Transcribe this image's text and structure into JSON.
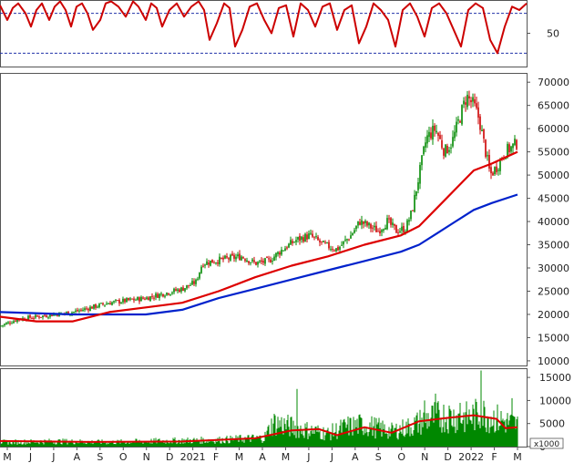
{
  "chart_data": [
    {
      "type": "line",
      "panel": "oscillator",
      "y_tick_labels": [
        "50"
      ],
      "ylim": [
        0,
        100
      ],
      "reference_levels": [
        80,
        20
      ],
      "series": [
        {
          "color": "#cc0000",
          "x_index": [
            0,
            8,
            14,
            20,
            28,
            34,
            40,
            46,
            54,
            60,
            66,
            72,
            78,
            84,
            90,
            96,
            102,
            110,
            116,
            122,
            130,
            138,
            146,
            152,
            160,
            166,
            172,
            178,
            186,
            194,
            202,
            210,
            218,
            224,
            230,
            238,
            246,
            252,
            258,
            266,
            274,
            282,
            290,
            298,
            306,
            314,
            322,
            330,
            338,
            346,
            354,
            362,
            370,
            378,
            386,
            394,
            402,
            410,
            418,
            426,
            434,
            442,
            450,
            458,
            466,
            474,
            482,
            490,
            498,
            506,
            514,
            522,
            530,
            538,
            546,
            554,
            562,
            570,
            578
          ],
          "values": [
            92,
            70,
            88,
            95,
            80,
            60,
            85,
            95,
            70,
            90,
            98,
            85,
            60,
            90,
            95,
            80,
            55,
            70,
            95,
            98,
            90,
            75,
            98,
            90,
            70,
            95,
            88,
            60,
            85,
            95,
            75,
            90,
            98,
            85,
            40,
            65,
            95,
            88,
            30,
            55,
            90,
            95,
            70,
            50,
            88,
            92,
            45,
            95,
            85,
            60,
            90,
            95,
            55,
            85,
            92,
            35,
            60,
            95,
            85,
            70,
            30,
            85,
            95,
            75,
            45,
            88,
            95,
            80,
            55,
            30,
            85,
            95,
            88,
            40,
            20,
            60,
            90,
            85,
            95
          ]
        }
      ]
    },
    {
      "type": "candlestick",
      "panel": "price",
      "x_tick_labels": [
        "M",
        "J",
        "J",
        "A",
        "S",
        "O",
        "N",
        "D",
        "2021",
        "F",
        "M",
        "A",
        "M",
        "J",
        "J",
        "A",
        "S",
        "O",
        "N",
        "D",
        "2022",
        "F",
        "M"
      ],
      "y_tick_labels": [
        "10000",
        "15000",
        "20000",
        "25000",
        "30000",
        "35000",
        "40000",
        "45000",
        "50000",
        "55000",
        "60000",
        "65000",
        "70000"
      ],
      "ylim": [
        9000,
        72000
      ],
      "colors": {
        "up": "#008800",
        "down": "#cc0000",
        "ma_short": "#dd0000",
        "ma_long": "#0022cc"
      },
      "price_path": [
        [
          0,
          17500
        ],
        [
          20,
          19000
        ],
        [
          40,
          19500
        ],
        [
          60,
          20000
        ],
        [
          80,
          20500
        ],
        [
          100,
          21500
        ],
        [
          120,
          22500
        ],
        [
          140,
          23000
        ],
        [
          160,
          23500
        ],
        [
          180,
          24500
        ],
        [
          200,
          25500
        ],
        [
          215,
          27000
        ],
        [
          222,
          31000
        ],
        [
          235,
          31500
        ],
        [
          250,
          32000
        ],
        [
          265,
          32500
        ],
        [
          280,
          31000
        ],
        [
          295,
          31500
        ],
        [
          310,
          34000
        ],
        [
          325,
          36000
        ],
        [
          340,
          37000
        ],
        [
          355,
          35000
        ],
        [
          370,
          34000
        ],
        [
          385,
          37000
        ],
        [
          395,
          40000
        ],
        [
          405,
          39000
        ],
        [
          415,
          38000
        ],
        [
          425,
          40000
        ],
        [
          435,
          38000
        ],
        [
          445,
          38500
        ],
        [
          452,
          42000
        ],
        [
          460,
          50000
        ],
        [
          468,
          58000
        ],
        [
          478,
          60000
        ],
        [
          488,
          55000
        ],
        [
          496,
          57000
        ],
        [
          504,
          62000
        ],
        [
          512,
          67000
        ],
        [
          520,
          65000
        ],
        [
          526,
          62000
        ],
        [
          532,
          56000
        ],
        [
          538,
          50000
        ],
        [
          546,
          52000
        ],
        [
          554,
          55000
        ],
        [
          562,
          56000
        ],
        [
          568,
          57000
        ]
      ],
      "ma_short": [
        [
          0,
          19500
        ],
        [
          40,
          18500
        ],
        [
          80,
          18500
        ],
        [
          120,
          20500
        ],
        [
          160,
          21500
        ],
        [
          200,
          22500
        ],
        [
          240,
          25000
        ],
        [
          280,
          28000
        ],
        [
          320,
          30500
        ],
        [
          360,
          32500
        ],
        [
          400,
          35000
        ],
        [
          440,
          37000
        ],
        [
          460,
          39000
        ],
        [
          480,
          43000
        ],
        [
          500,
          47000
        ],
        [
          520,
          51000
        ],
        [
          540,
          52500
        ],
        [
          568,
          55000
        ]
      ],
      "ma_long": [
        [
          0,
          20500
        ],
        [
          80,
          20000
        ],
        [
          120,
          20000
        ],
        [
          160,
          20000
        ],
        [
          200,
          21000
        ],
        [
          240,
          23500
        ],
        [
          280,
          25500
        ],
        [
          320,
          27500
        ],
        [
          360,
          29500
        ],
        [
          400,
          31500
        ],
        [
          440,
          33500
        ],
        [
          460,
          35000
        ],
        [
          480,
          37500
        ],
        [
          500,
          40000
        ],
        [
          520,
          42500
        ],
        [
          540,
          44000
        ],
        [
          568,
          45800
        ]
      ]
    },
    {
      "type": "bar",
      "panel": "volume",
      "y_tick_labels": [
        "0",
        "5000",
        "10000",
        "15000"
      ],
      "unit_label": "x1000",
      "ylim": [
        0,
        17000
      ],
      "colors": {
        "bars": "#008800",
        "ma": "#dd0000"
      },
      "volume_profile": [
        [
          0,
          1000
        ],
        [
          60,
          1200
        ],
        [
          120,
          1000
        ],
        [
          180,
          1300
        ],
        [
          240,
          1500
        ],
        [
          290,
          2000
        ],
        [
          300,
          5500
        ],
        [
          330,
          4000
        ],
        [
          360,
          3000
        ],
        [
          380,
          4500
        ],
        [
          400,
          5000
        ],
        [
          430,
          3500
        ],
        [
          450,
          4500
        ],
        [
          470,
          6500
        ],
        [
          490,
          7000
        ],
        [
          510,
          6500
        ],
        [
          530,
          7500
        ],
        [
          550,
          6000
        ],
        [
          568,
          5000
        ]
      ],
      "volume_spikes": [
        [
          326,
          12500
        ],
        [
          466,
          10000
        ],
        [
          478,
          11500
        ],
        [
          505,
          9500
        ],
        [
          528,
          16500
        ],
        [
          562,
          10500
        ]
      ],
      "ma": [
        [
          0,
          1200
        ],
        [
          100,
          1000
        ],
        [
          200,
          1100
        ],
        [
          280,
          1800
        ],
        [
          320,
          3500
        ],
        [
          350,
          3800
        ],
        [
          370,
          2500
        ],
        [
          400,
          4200
        ],
        [
          430,
          3000
        ],
        [
          460,
          5500
        ],
        [
          490,
          6200
        ],
        [
          520,
          6800
        ],
        [
          545,
          6000
        ],
        [
          555,
          4000
        ],
        [
          568,
          4200
        ]
      ]
    }
  ]
}
